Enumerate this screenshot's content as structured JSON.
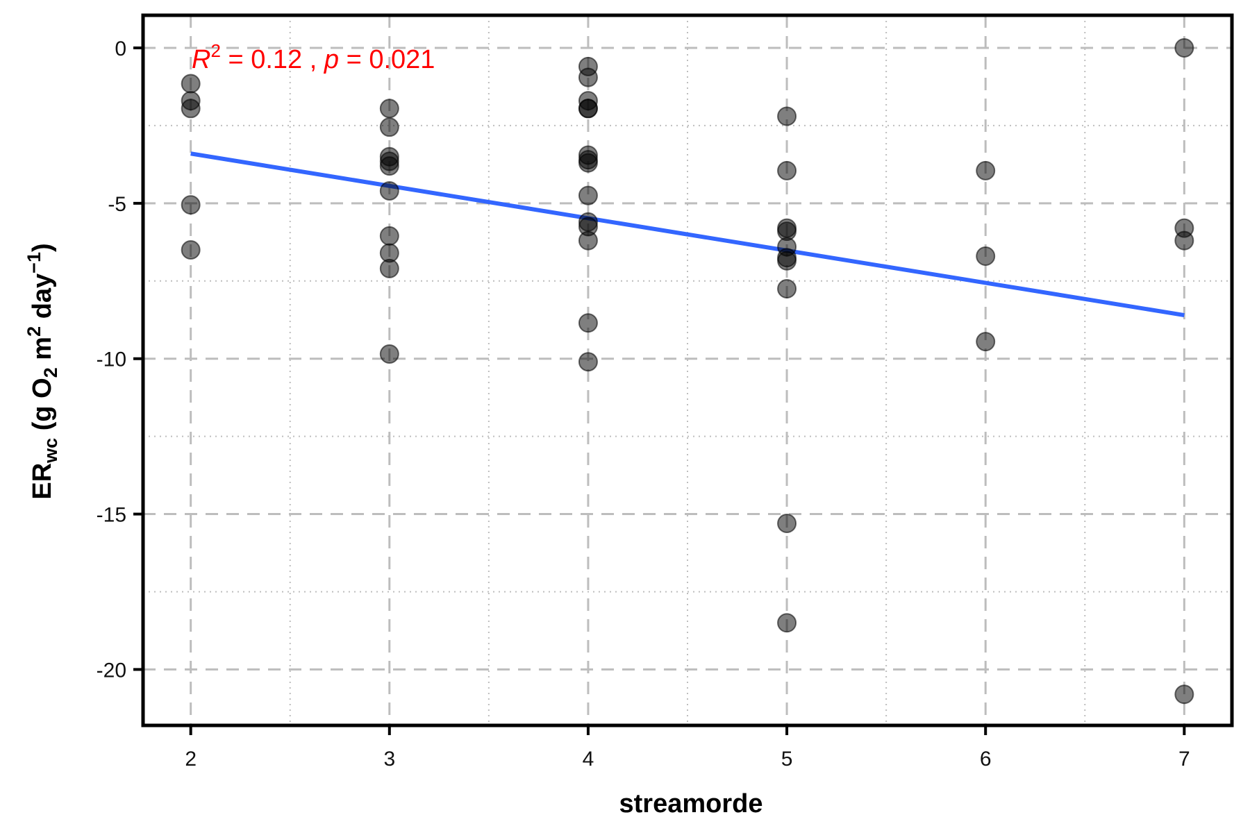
{
  "chart_data": {
    "type": "scatter",
    "xlabel": "streamorde",
    "ylabel": {
      "prefix": "ER",
      "prefix_sub": "wc",
      "part1": " (g O",
      "sub1": "2",
      "part2": " m",
      "sup1": "2",
      "part3": " day",
      "sup2": "−1",
      "part4": ")"
    },
    "xlim": [
      1.76,
      7.24
    ],
    "ylim": [
      -21.8,
      1.05
    ],
    "x_ticks": [
      2,
      3,
      4,
      5,
      6,
      7
    ],
    "x_tick_labels": [
      "2",
      "3",
      "4",
      "5",
      "6",
      "7"
    ],
    "y_ticks": [
      0,
      -5,
      -10,
      -15,
      -20
    ],
    "y_tick_labels": [
      "0",
      "-5",
      "-10",
      "-15",
      "-20"
    ],
    "x_minor_grid": [
      2.5,
      3.5,
      4.5,
      5.5,
      6.5
    ],
    "y_minor_grid": [
      -2.5,
      -7.5,
      -12.5,
      -17.5
    ],
    "grid": true,
    "points": [
      {
        "x": 2,
        "y": -1.15
      },
      {
        "x": 2,
        "y": -1.7
      },
      {
        "x": 2,
        "y": -1.95
      },
      {
        "x": 2,
        "y": -5.05
      },
      {
        "x": 2,
        "y": -6.5
      },
      {
        "x": 3,
        "y": -1.95
      },
      {
        "x": 3,
        "y": -2.55
      },
      {
        "x": 3,
        "y": -3.5
      },
      {
        "x": 3,
        "y": -3.65
      },
      {
        "x": 3,
        "y": -3.8
      },
      {
        "x": 3,
        "y": -4.6
      },
      {
        "x": 3,
        "y": -6.05
      },
      {
        "x": 3,
        "y": -6.6
      },
      {
        "x": 3,
        "y": -7.1
      },
      {
        "x": 3,
        "y": -9.85
      },
      {
        "x": 4,
        "y": -0.6
      },
      {
        "x": 4,
        "y": -0.95
      },
      {
        "x": 4,
        "y": -1.7
      },
      {
        "x": 4,
        "y": -1.95
      },
      {
        "x": 4,
        "y": -1.95
      },
      {
        "x": 4,
        "y": -3.45
      },
      {
        "x": 4,
        "y": -3.6
      },
      {
        "x": 4,
        "y": -3.7
      },
      {
        "x": 4,
        "y": -4.75
      },
      {
        "x": 4,
        "y": -5.6
      },
      {
        "x": 4,
        "y": -5.75
      },
      {
        "x": 4,
        "y": -6.2
      },
      {
        "x": 4,
        "y": -8.85
      },
      {
        "x": 4,
        "y": -10.1
      },
      {
        "x": 5,
        "y": -2.2
      },
      {
        "x": 5,
        "y": -3.95
      },
      {
        "x": 5,
        "y": -5.8
      },
      {
        "x": 5,
        "y": -5.9
      },
      {
        "x": 5,
        "y": -6.4
      },
      {
        "x": 5,
        "y": -6.75
      },
      {
        "x": 5,
        "y": -6.85
      },
      {
        "x": 5,
        "y": -7.75
      },
      {
        "x": 5,
        "y": -15.3
      },
      {
        "x": 5,
        "y": -18.5
      },
      {
        "x": 6,
        "y": -3.95
      },
      {
        "x": 6,
        "y": -6.7
      },
      {
        "x": 6,
        "y": -9.45
      },
      {
        "x": 7,
        "y": 0.0
      },
      {
        "x": 7,
        "y": -5.8
      },
      {
        "x": 7,
        "y": -6.2
      },
      {
        "x": 7,
        "y": -20.8
      }
    ],
    "regression_line": {
      "x": [
        2,
        7
      ],
      "y": [
        -3.4,
        -8.6
      ]
    },
    "annotation": {
      "r_label": "R",
      "r_sup": "2",
      "text_mid": " = 0.12 , ",
      "p_label": "p",
      "text_end": " = 0.021"
    },
    "colors": {
      "points": "#000000",
      "regression_line": "#3366FF",
      "annotation": "#FF0000",
      "grid": "#bdbdbd",
      "axis": "#000000"
    }
  }
}
